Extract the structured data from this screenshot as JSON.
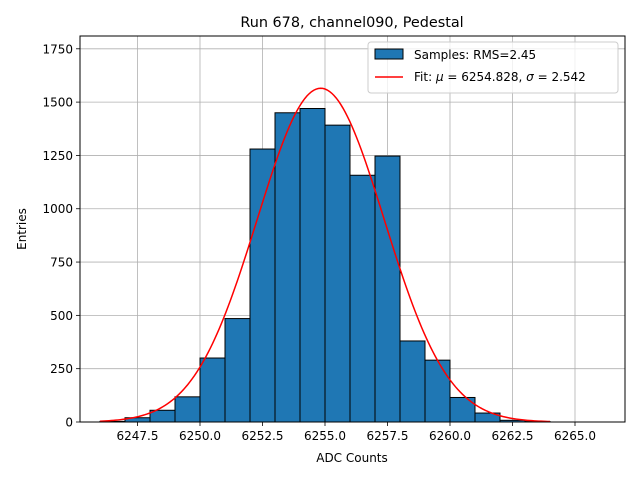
{
  "chart_data": {
    "type": "bar",
    "title": "Run 678, channel090, Pedestal",
    "xlabel": "ADC Counts",
    "ylabel": "Entries",
    "xlim": [
      6245.2,
      6267.0
    ],
    "ylim": [
      0,
      1810
    ],
    "xticks": [
      6247.5,
      6250.0,
      6252.5,
      6255.0,
      6257.5,
      6260.0,
      6262.5,
      6265.0
    ],
    "xtick_labels": [
      "6247.5",
      "6250.0",
      "6252.5",
      "6255.0",
      "6257.5",
      "6260.0",
      "6262.5",
      "6265.0"
    ],
    "yticks": [
      0,
      250,
      500,
      750,
      1000,
      1250,
      1500,
      1750
    ],
    "ytick_labels": [
      "0",
      "250",
      "500",
      "750",
      "1000",
      "1250",
      "1500",
      "1750"
    ],
    "grid": true,
    "legend_position": "top-right",
    "histogram": {
      "name": "Samples: RMS=2.45",
      "bin_edges": [
        6246,
        6247,
        6248,
        6249,
        6250,
        6251,
        6252,
        6253,
        6254,
        6255,
        6256,
        6257,
        6258,
        6259,
        6260,
        6261,
        6262,
        6263,
        6264,
        6265,
        6266
      ],
      "values": [
        3,
        20,
        55,
        118,
        300,
        485,
        1280,
        1450,
        1470,
        1392,
        1157,
        1247,
        380,
        290,
        115,
        42,
        8,
        2,
        0,
        0
      ],
      "color": "#1f77b4",
      "edge_color": "#000000"
    },
    "fit": {
      "name": "Fit: μ = 6254.828, σ = 2.542",
      "label_prefix": "Fit: ",
      "mu_symbol": "μ",
      "mu_text": " = 6254.828, ",
      "sigma_symbol": "σ",
      "sigma_text": " = 2.542",
      "mu": 6254.828,
      "sigma": 2.542,
      "amplitude": 1565,
      "x_range": [
        6246,
        6264
      ],
      "color": "#ff0000"
    }
  }
}
